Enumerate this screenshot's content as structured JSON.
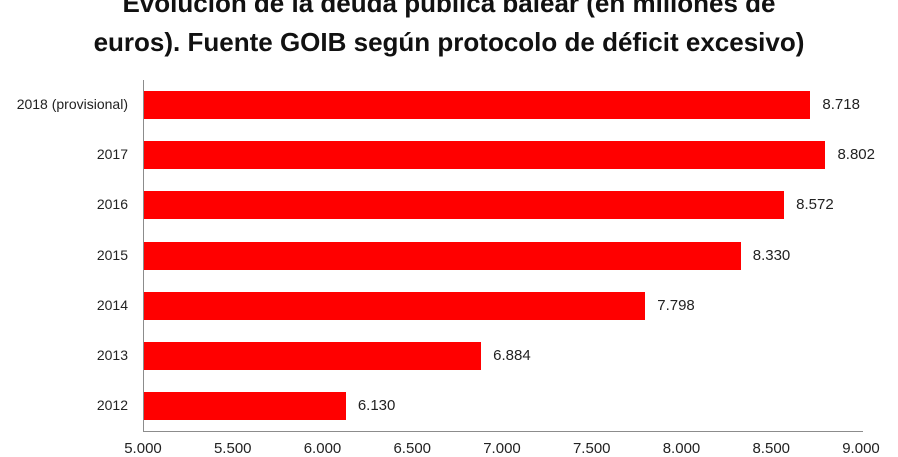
{
  "chart_data": {
    "type": "bar",
    "orientation": "horizontal",
    "title": "Evolución de la deuda pública balear (en millones de euros). Fuente GOIB según protocolo de déficit excesivo)",
    "title_lines": [
      "Evolución de la deuda pública balear (en millones de",
      "euros). Fuente GOIB según protocolo de déficit excesivo)"
    ],
    "categories": [
      "2018 (provisional)",
      "2017",
      "2016",
      "2015",
      "2014",
      "2013",
      "2012"
    ],
    "values": [
      8718,
      8802,
      8572,
      8330,
      7798,
      6884,
      6130
    ],
    "value_labels": [
      "8.718",
      "8.802",
      "8.572",
      "8.330",
      "7.798",
      "6.884",
      "6.130"
    ],
    "xlabel": "",
    "ylabel": "",
    "xlim": [
      5000,
      9000
    ],
    "xticks": [
      "5.000",
      "5.500",
      "6.000",
      "6.500",
      "7.000",
      "7.500",
      "8.000",
      "8.500",
      "9.000"
    ],
    "bar_color": "#ff0000",
    "grid": false,
    "legend": null
  }
}
